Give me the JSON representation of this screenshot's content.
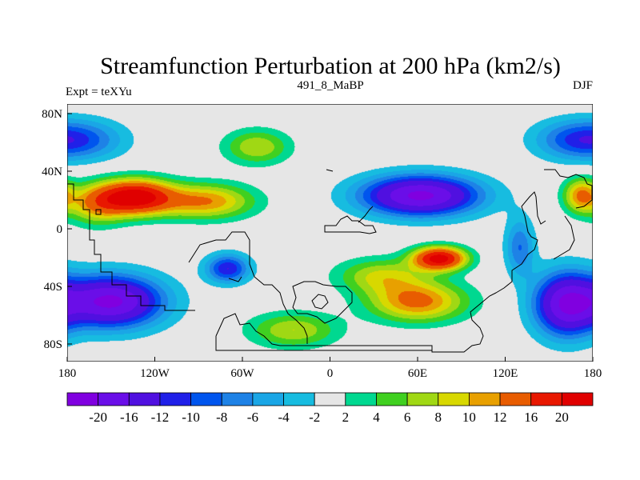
{
  "title": "Streamfunction Perturbation at 200 hPa (km2/s)",
  "left_subtitle": "Expt = teXYu",
  "center_subtitle": "491_8_MaBP",
  "right_subtitle": "DJF",
  "chart_data": {
    "type": "heatmap",
    "projection": "cylindrical-equidistant",
    "variable": "streamfunction perturbation",
    "level": "200 hPa",
    "units": "km2/s",
    "xlim": [
      -180,
      180
    ],
    "ylim": [
      -90,
      90
    ],
    "x_ticks": [
      {
        "value": -180,
        "label": "180"
      },
      {
        "value": -120,
        "label": "120W"
      },
      {
        "value": -60,
        "label": "60W"
      },
      {
        "value": 0,
        "label": "0"
      },
      {
        "value": 60,
        "label": "60E"
      },
      {
        "value": 120,
        "label": "120E"
      },
      {
        "value": 180,
        "label": "180"
      }
    ],
    "y_ticks": [
      {
        "value": 80,
        "label": "80N"
      },
      {
        "value": 40,
        "label": "40N"
      },
      {
        "value": 0,
        "label": "0"
      },
      {
        "value": -40,
        "label": "40S"
      },
      {
        "value": -80,
        "label": "80S"
      }
    ],
    "contour_levels": [
      -20,
      -16,
      -12,
      -10,
      -8,
      -6,
      -4,
      -2,
      2,
      4,
      6,
      8,
      10,
      12,
      16,
      20
    ],
    "colorbar_labels": [
      "-20",
      "-16",
      "-12",
      "-10",
      "-8",
      "-6",
      "-4",
      "-2",
      "2",
      "4",
      "6",
      "8",
      "10",
      "12",
      "16",
      "20"
    ],
    "colorbar_colors": [
      "#8000e0",
      "#6a0ee8",
      "#5010e0",
      "#2020e8",
      "#0055ee",
      "#1e82e6",
      "#1aa6e6",
      "#17bce0",
      "#e6e6e6",
      "#00d890",
      "#40d020",
      "#a0d814",
      "#d8d800",
      "#e8a000",
      "#e85c00",
      "#e81800",
      "#e00000"
    ],
    "features": [
      {
        "lon": -133,
        "lat": 25,
        "value": 22,
        "slon": 25,
        "slat": 12
      },
      {
        "lon": -85,
        "lat": 22,
        "value": 12,
        "slon": 32,
        "slat": 12
      },
      {
        "lon": -160,
        "lat": 20,
        "value": 10,
        "slon": 20,
        "slat": 14
      },
      {
        "lon": 172,
        "lat": 26,
        "value": 12,
        "slon": 12,
        "slat": 12
      },
      {
        "lon": 75,
        "lat": -18,
        "value": 22,
        "slon": 18,
        "slat": 8
      },
      {
        "lon": 60,
        "lat": -48,
        "value": 13,
        "slon": 33,
        "slat": 14
      },
      {
        "lon": 35,
        "lat": -30,
        "value": 8,
        "slon": 30,
        "slat": 12
      },
      {
        "lon": -25,
        "lat": -68,
        "value": 8,
        "slon": 30,
        "slat": 12
      },
      {
        "lon": 62,
        "lat": 26,
        "value": -21,
        "slon": 40,
        "slat": 14
      },
      {
        "lon": -50,
        "lat": 60,
        "value": 8,
        "slon": 22,
        "slat": 12
      },
      {
        "lon": -170,
        "lat": 65,
        "value": -8,
        "slon": 30,
        "slat": 14
      },
      {
        "lon": 165,
        "lat": 65,
        "value": -7,
        "slon": 28,
        "slat": 14
      },
      {
        "lon": -150,
        "lat": -48,
        "value": -21,
        "slon": 35,
        "slat": 18
      },
      {
        "lon": -70,
        "lat": -25,
        "value": -12,
        "slon": 15,
        "slat": 10
      },
      {
        "lon": 162,
        "lat": -50,
        "value": -19,
        "slon": 22,
        "slat": 22
      },
      {
        "lon": 130,
        "lat": -10,
        "value": -8,
        "slon": 10,
        "slat": 20
      }
    ]
  }
}
